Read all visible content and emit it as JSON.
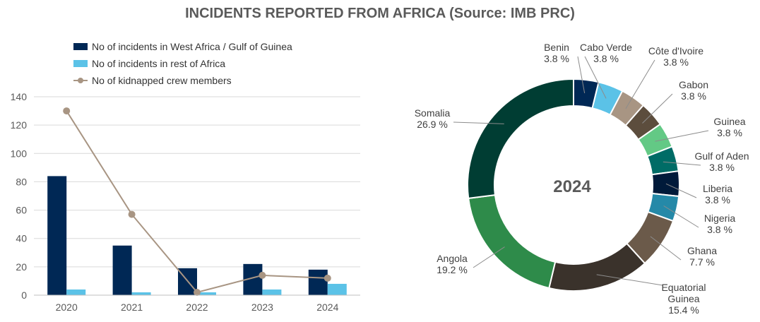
{
  "title": "INCIDENTS REPORTED FROM AFRICA (Source: IMB PRC)",
  "chart_data": [
    {
      "type": "bar",
      "categories": [
        "2020",
        "2021",
        "2022",
        "2023",
        "2024"
      ],
      "series": [
        {
          "name": "No of incidents in West Africa / Gulf of Guinea",
          "kind": "bar",
          "color": "#002855",
          "values": [
            84,
            35,
            19,
            22,
            18
          ]
        },
        {
          "name": "No of incidents in rest of Africa",
          "kind": "bar",
          "color": "#5bc2e7",
          "values": [
            4,
            2,
            2,
            4,
            8
          ]
        },
        {
          "name": "No of kidnapped crew members",
          "kind": "line",
          "color": "#a89583",
          "values": [
            130,
            57,
            2,
            14,
            12
          ]
        }
      ],
      "ylim": [
        0,
        140
      ],
      "yticks": [
        "0",
        "20",
        "40",
        "60",
        "80",
        "100",
        "120",
        "140"
      ],
      "grid": true,
      "legend": "top-left"
    },
    {
      "type": "pie",
      "center_label": "2024",
      "slices": [
        {
          "label": "Benin",
          "pct_label": "3.8 %",
          "value": 3.8,
          "color": "#002855"
        },
        {
          "label": "Cabo Verde",
          "pct_label": "3.8 %",
          "value": 3.8,
          "color": "#5bc2e7"
        },
        {
          "label": "Côte d'Ivoire",
          "pct_label": "3.8 %",
          "value": 3.8,
          "color": "#a89583"
        },
        {
          "label": "Gabon",
          "pct_label": "3.8 %",
          "value": 3.8,
          "color": "#5c4d3d"
        },
        {
          "label": "Guinea",
          "pct_label": "3.8 %",
          "value": 3.8,
          "color": "#63c985"
        },
        {
          "label": "Gulf of Aden",
          "pct_label": "3.8 %",
          "value": 3.8,
          "color": "#006c66"
        },
        {
          "label": "Liberia",
          "pct_label": "3.8 %",
          "value": 3.8,
          "color": "#001a3a"
        },
        {
          "label": "Nigeria",
          "pct_label": "3.8 %",
          "value": 3.8,
          "color": "#2589a8"
        },
        {
          "label": "Ghana",
          "pct_label": "7.7 %",
          "value": 7.7,
          "color": "#6b5a4a"
        },
        {
          "label": "Equatorial Guinea",
          "pct_label": "15.4 %",
          "value": 15.4,
          "color": "#3a322b"
        },
        {
          "label": "Angola",
          "pct_label": "19.2 %",
          "value": 19.2,
          "color": "#2e8b4a"
        },
        {
          "label": "Somalia",
          "pct_label": "26.9 %",
          "value": 26.9,
          "color": "#003d33"
        }
      ]
    }
  ]
}
